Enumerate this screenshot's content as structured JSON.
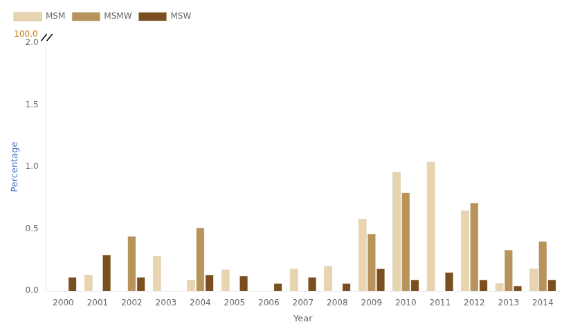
{
  "chart_data": {
    "type": "bar",
    "x_label": "Year",
    "y_label": "Percentage",
    "categories": [
      "2000",
      "2001",
      "2002",
      "2003",
      "2004",
      "2005",
      "2006",
      "2007",
      "2008",
      "2009",
      "2010",
      "2011",
      "2012",
      "2013",
      "2014"
    ],
    "series": [
      {
        "name": "MSM",
        "color": "#e8d5b0",
        "values": [
          0.0,
          0.13,
          0.0,
          0.28,
          0.09,
          0.17,
          0.0,
          0.18,
          0.2,
          0.58,
          0.96,
          1.04,
          0.65,
          0.06,
          0.18
        ]
      },
      {
        "name": "MSMW",
        "color": "#b8935a",
        "values": [
          0.0,
          0.0,
          0.44,
          0.0,
          0.51,
          0.0,
          0.0,
          0.0,
          0.0,
          0.46,
          0.79,
          0.0,
          0.71,
          0.33,
          0.4
        ]
      },
      {
        "name": "MSW",
        "color": "#7a4e1e",
        "values": [
          0.11,
          0.29,
          0.11,
          0.0,
          0.13,
          0.12,
          0.06,
          0.11,
          0.06,
          0.18,
          0.09,
          0.15,
          0.09,
          0.04,
          0.09
        ]
      }
    ],
    "ylim": [
      0,
      2.0
    ],
    "yticks": [
      {
        "value": 0,
        "label": "0.0"
      },
      0.5,
      {
        "value": 1,
        "label": "1.0"
      },
      1.5,
      {
        "value": 2,
        "label": "2.0"
      }
    ],
    "grid": false,
    "legend": "upper left",
    "annotations": [
      {
        "text": "100.0",
        "color": "#c8730a"
      }
    ]
  }
}
